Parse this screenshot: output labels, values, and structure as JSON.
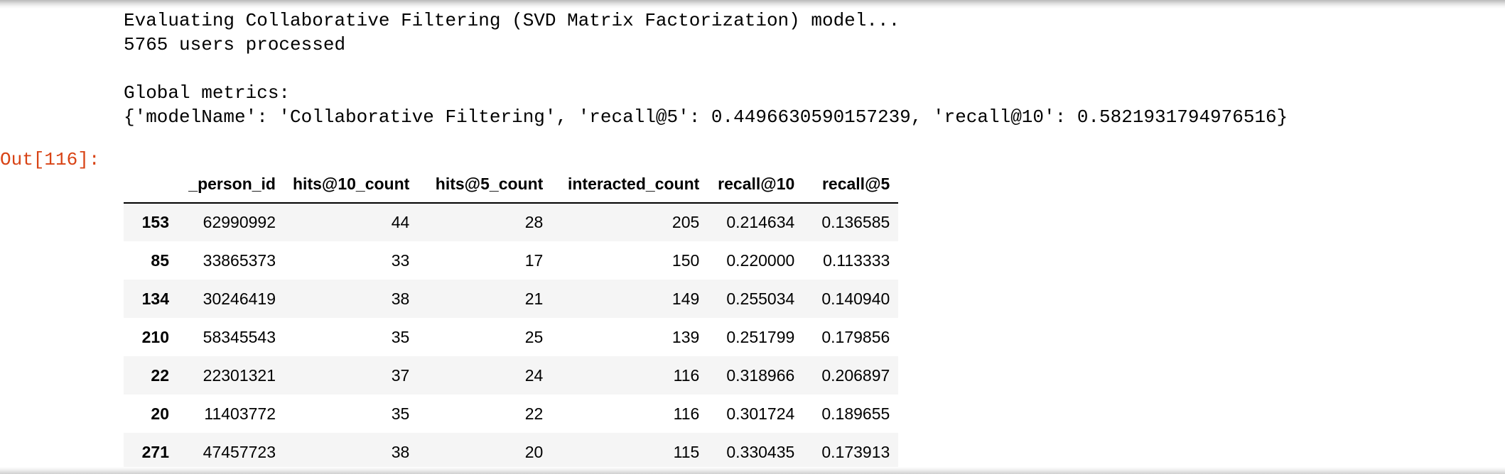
{
  "output": {
    "stream_lines": [
      "Evaluating Collaborative Filtering (SVD Matrix Factorization) model...",
      "5765 users processed",
      "",
      "Global metrics:",
      "{'modelName': 'Collaborative Filtering', 'recall@5': 0.4496630590157239, 'recall@10': 0.5821931794976516}"
    ],
    "prompt": "Out[116]:"
  },
  "table": {
    "columns": [
      "",
      "_person_id",
      "hits@10_count",
      "hits@5_count",
      "interacted_count",
      "recall@10",
      "recall@5"
    ],
    "rows": [
      {
        "index": "153",
        "cells": [
          "62990992",
          "44",
          "28",
          "205",
          "0.214634",
          "0.136585"
        ]
      },
      {
        "index": "85",
        "cells": [
          "33865373",
          "33",
          "17",
          "150",
          "0.220000",
          "0.113333"
        ]
      },
      {
        "index": "134",
        "cells": [
          "30246419",
          "38",
          "21",
          "149",
          "0.255034",
          "0.140940"
        ]
      },
      {
        "index": "210",
        "cells": [
          "58345543",
          "35",
          "25",
          "139",
          "0.251799",
          "0.179856"
        ]
      },
      {
        "index": "22",
        "cells": [
          "22301321",
          "37",
          "24",
          "116",
          "0.318966",
          "0.206897"
        ]
      },
      {
        "index": "20",
        "cells": [
          "11403772",
          "35",
          "22",
          "116",
          "0.301724",
          "0.189655"
        ]
      },
      {
        "index": "271",
        "cells": [
          "47457723",
          "38",
          "20",
          "115",
          "0.330435",
          "0.173913"
        ]
      }
    ]
  },
  "colors": {
    "prompt": "#d84315",
    "stripe": "#f5f5f5"
  }
}
